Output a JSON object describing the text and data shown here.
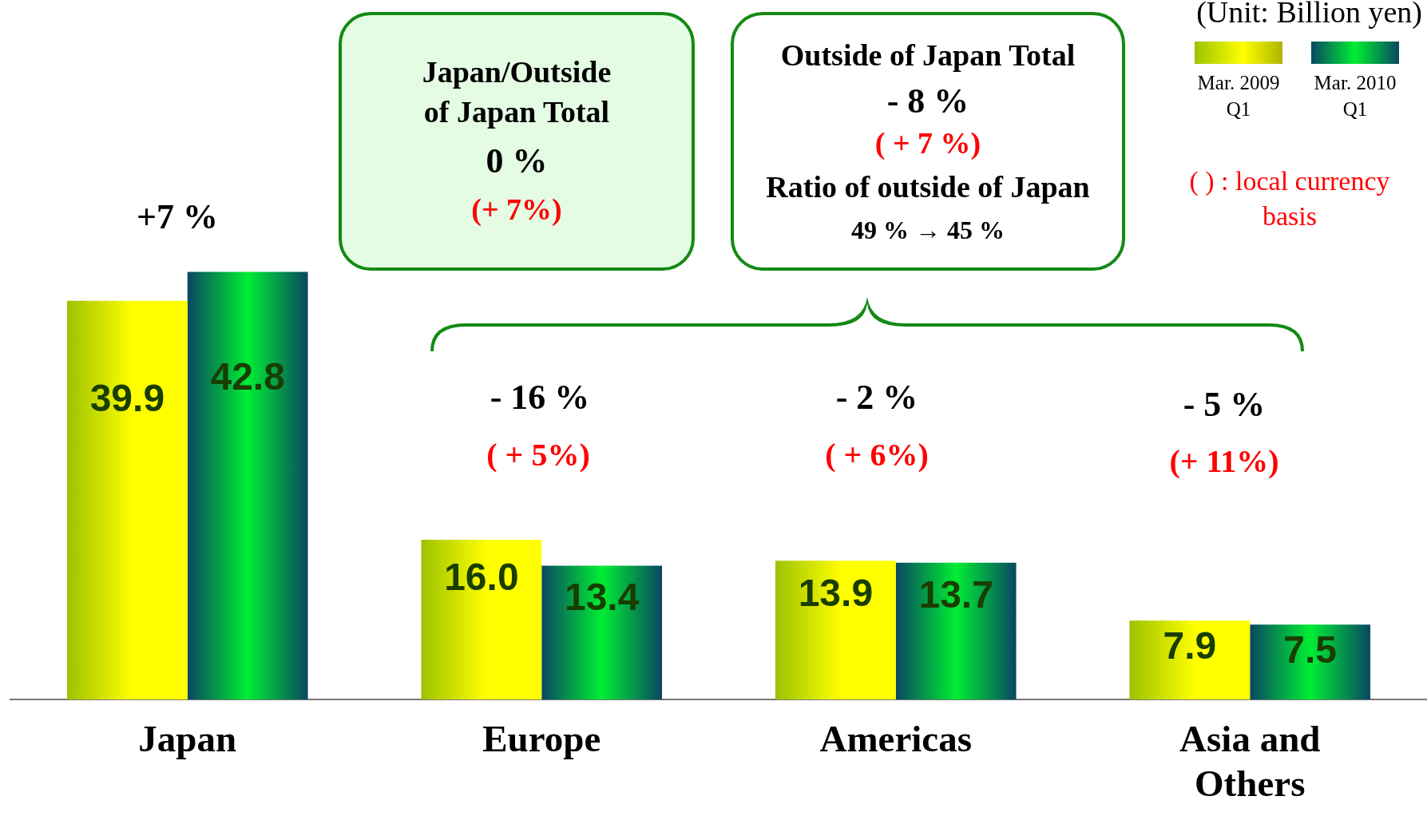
{
  "chart_data": {
    "type": "bar",
    "categories": [
      "Japan",
      "Europe",
      "Americas",
      "Asia and\nOthers"
    ],
    "series": [
      {
        "name": "Mar. 2009\nQ1",
        "color": "#ffff00",
        "values": [
          39.9,
          16.0,
          13.9,
          7.9
        ],
        "value_labels": [
          "39.9",
          "16.0",
          "13.9",
          "7.9"
        ]
      },
      {
        "name": "Mar. 2010\nQ1",
        "color": "#00ee33",
        "values": [
          42.8,
          13.4,
          13.7,
          7.5
        ],
        "value_labels": [
          "42.8",
          "13.4",
          "13.7",
          "7.5"
        ]
      }
    ],
    "tick_labels": "x",
    "legend": "top right",
    "annotations": [
      "(Unit: Billion yen)",
      "Japan/Outside\nof Japan Total",
      "0 %",
      "(+ 7%)",
      "Outside of Japan Total",
      "- 8 %",
      "( + 7 %)",
      "Ratio of outside of Japan",
      "49 % → 45 %",
      "( ) : local currency basis",
      "+7 %",
      "- 16 %",
      "( + 5%)",
      "- 2 %",
      "( + 6%)",
      "- 5 %",
      "(+ 11%)"
    ]
  }
}
